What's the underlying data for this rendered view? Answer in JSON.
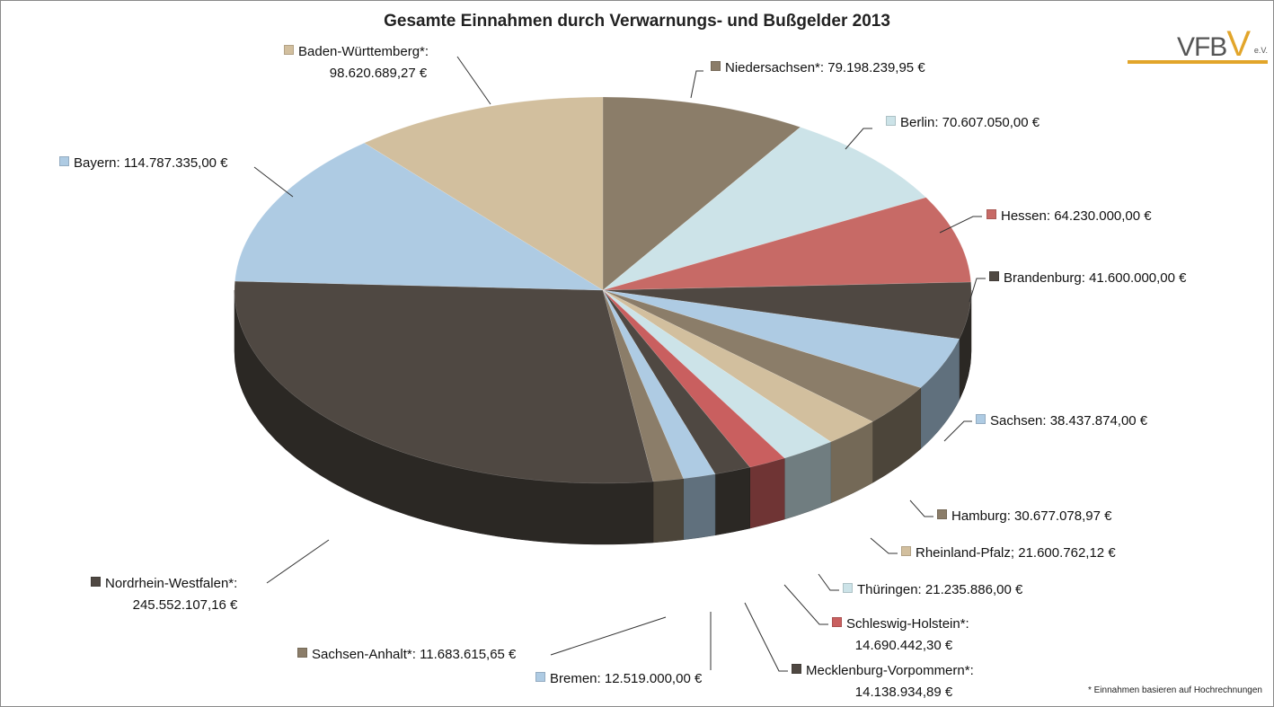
{
  "chart_data": {
    "type": "pie",
    "title": "Gesamte Einnahmen durch Verwarnungs- und Bußgelder 2013",
    "footnote": "* Einnahmen basieren auf Hochrechnungen",
    "slices": [
      {
        "name": "Niedersachsen*",
        "label": "Niedersachsen*: 79.198.239,95 €",
        "value": 79198239.95,
        "color": "#8B7D69"
      },
      {
        "name": "Berlin",
        "label": "Berlin: 70.607.050,00 €",
        "value": 70607050.0,
        "color": "#CCE3E8"
      },
      {
        "name": "Hessen",
        "label": "Hessen: 64.230.000,00 €",
        "value": 64230000.0,
        "color": "#C76A66"
      },
      {
        "name": "Brandenburg",
        "label": "Brandenburg: 41.600.000,00 €",
        "value": 41600000.0,
        "color": "#4F4842"
      },
      {
        "name": "Sachsen",
        "label": "Sachsen: 38.437.874,00 €",
        "value": 38437874.0,
        "color": "#AECBE3"
      },
      {
        "name": "Hamburg",
        "label": "Hamburg: 30.677.078,97 €",
        "value": 30677078.97,
        "color": "#8B7D69"
      },
      {
        "name": "Rheinland-Pfalz",
        "label": "Rheinland-Pfalz; 21.600.762,12 €",
        "value": 21600762.12,
        "color": "#D2BF9E"
      },
      {
        "name": "Thüringen",
        "label": "Thüringen: 21.235.886,00 €",
        "value": 21235886.0,
        "color": "#CCE3E8"
      },
      {
        "name": "Schleswig-Holstein*",
        "label": "Schleswig-Holstein*:",
        "label2": "14.690.442,30  €",
        "value": 14690442.3,
        "color": "#C95F5F"
      },
      {
        "name": "Mecklenburg-Vorpommern*",
        "label": "Mecklenburg-Vorpommern*:",
        "label2": "14.138.934,89 €",
        "value": 14138934.89,
        "color": "#4F4842"
      },
      {
        "name": "Bremen",
        "label": "Bremen: 12.519.000,00 €",
        "value": 12519000.0,
        "color": "#AECBE3"
      },
      {
        "name": "Sachsen-Anhalt*",
        "label": "Sachsen-Anhalt*: 11.683.615,65 €",
        "value": 11683615.65,
        "color": "#8B7D69"
      },
      {
        "name": "Nordrhein-Westfalen*",
        "label": "Nordrhein-Westfalen*:",
        "label2": "245.552.107,16 €",
        "value": 245552107.16,
        "color": "#4F4842"
      },
      {
        "name": "Bayern",
        "label": "Bayern: 114.787.335,00 €",
        "value": 114787335.0,
        "color": "#AECBE3"
      },
      {
        "name": "Baden-Württemberg*",
        "label": "Baden-Württemberg*:",
        "label2": "98.620.689,27 €",
        "value": 98620689.27,
        "color": "#D2BF9E"
      }
    ]
  },
  "logo": {
    "text": "VFB",
    "accent": "V",
    "suffix": "e.V."
  }
}
